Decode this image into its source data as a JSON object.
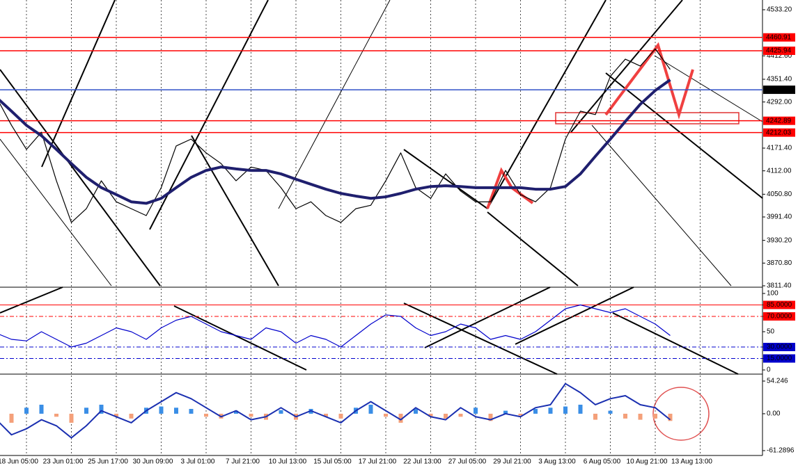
{
  "chart_data": [
    {
      "type": "line",
      "categories": [
        null,
        null,
        "18 Jun 05:00",
        null,
        null,
        "23 Jun 01:00",
        null,
        null,
        "25 Jun 17:00",
        null,
        null,
        "30 Jun 09:00",
        null,
        null,
        "3 Jul 01:00",
        null,
        null,
        "7 Jul 21:00",
        null,
        null,
        "10 Jul 13:00",
        null,
        null,
        "15 Jul 05:00",
        null,
        null,
        "17 Jul 21:00",
        null,
        null,
        "22 Jul 13:00",
        null,
        null,
        "27 Jul 05:00",
        null,
        null,
        "29 Jul 21:00",
        null,
        null,
        "3 Aug 13:00",
        null,
        null,
        "6 Aug 05:00",
        null,
        null,
        "10 Aug 21:00",
        null,
        null,
        "13 Aug 13:00",
        null,
        null
      ],
      "series": [
        {
          "color": "#000000",
          "values": [
            4304,
            4231,
            4168,
            4213,
            4086,
            3977,
            4013,
            4086,
            4031,
            4013,
            3995,
            4068,
            4177,
            4195,
            4159,
            4131,
            4086,
            4122,
            4113,
            4068,
            4013,
            4031,
            3995,
            3977,
            4013,
            4022,
            4086,
            4159,
            4068,
            4040,
            4104,
            4059,
            4031,
            4031,
            4113,
            4050,
            4031,
            4068,
            4195,
            4268,
            4259,
            4359,
            4404,
            4386,
            4431,
            4377,
            null,
            null,
            null,
            null
          ]
        },
        {
          "color": "#1f1f6e",
          "values": [
            4304,
            4268,
            4231,
            4204,
            4168,
            4131,
            4095,
            4068,
            4050,
            4031,
            4027,
            4040,
            4068,
            4095,
            4113,
            4122,
            4117,
            4113,
            4113,
            4104,
            4090,
            4077,
            4064,
            4053,
            4046,
            4040,
            4044,
            4053,
            4064,
            4071,
            4073,
            4071,
            4068,
            4068,
            4068,
            4068,
            4064,
            4064,
            4071,
            4104,
            4150,
            4195,
            4241,
            4286,
            4322,
            4350,
            null,
            null,
            null,
            null
          ]
        }
      ],
      "ylim": [
        3811.4,
        4533.2
      ],
      "yticks": [
        {
          "value": 4533.2,
          "label": "4533.20"
        },
        {
          "value": 4412.6,
          "label": "4412.60"
        },
        {
          "value": 4351.4,
          "label": "4351.40"
        },
        {
          "value": 4292,
          "label": "4292.00"
        },
        {
          "value": 4171.4,
          "label": "4171.40"
        },
        {
          "value": 4112,
          "label": "4112.00"
        },
        {
          "value": 4050.8,
          "label": "4050.80"
        },
        {
          "value": 3991.4,
          "label": "3991.40"
        },
        {
          "value": 3930.2,
          "label": "3930.20"
        },
        {
          "value": 3870.8,
          "label": "3870.80"
        },
        {
          "value": 3811.4,
          "label": "3811.40"
        }
      ],
      "levels": [
        {
          "value": 4460.91,
          "color": "#ff0000"
        },
        {
          "value": 4425.94,
          "color": "#ff0000"
        },
        {
          "value": 4323.99,
          "color": "#3050c8"
        },
        {
          "value": 4242.89,
          "color": "#ff0000"
        },
        {
          "value": 4212.03,
          "color": "#ff0000"
        }
      ]
    },
    {
      "type": "line",
      "series": [
        {
          "color": "#0000cc",
          "values": [
            48,
            40,
            38,
            50,
            40,
            30,
            35,
            45,
            55,
            50,
            40,
            55,
            65,
            70,
            60,
            50,
            45,
            40,
            55,
            50,
            35,
            45,
            40,
            30,
            45,
            60,
            72,
            70,
            55,
            45,
            50,
            60,
            55,
            40,
            45,
            40,
            50,
            65,
            80,
            85,
            80,
            75,
            80,
            70,
            60,
            45,
            null,
            null,
            null,
            null
          ]
        }
      ],
      "ylim": [
        0,
        100
      ],
      "yticks": [
        100,
        {
          "value": 85,
          "label": "85.0000"
        },
        {
          "value": 70,
          "label": "70.0000"
        },
        50,
        {
          "value": 30,
          "label": "30.0000"
        },
        {
          "value": 15,
          "label": "15.0000"
        },
        0
      ],
      "levels": [
        {
          "value": 85,
          "color": "#ff0000"
        },
        {
          "value": 70,
          "color": "#ff0000"
        },
        {
          "value": 30,
          "color": "#0000cc"
        },
        {
          "value": 15,
          "color": "#0000cc"
        }
      ]
    },
    {
      "type": "bar",
      "series": [
        {
          "colors": {
            "positive": "#3a8ee6",
            "negative": "#f4a07a"
          },
          "values": [
            -10,
            -15,
            10,
            15,
            -5,
            -15,
            10,
            15,
            -5,
            -8,
            10,
            12,
            10,
            8,
            -5,
            -8,
            5,
            -5,
            -10,
            6,
            -10,
            8,
            -5,
            -8,
            10,
            15,
            -5,
            -15,
            8,
            -5,
            -8,
            -5,
            10,
            -12,
            5,
            -3,
            8,
            10,
            12,
            15,
            -10,
            5,
            -8,
            -10,
            -8,
            -12,
            null,
            null,
            null,
            null
          ]
        },
        {
          "color": "#1a2fb0",
          "values": [
            -10,
            -35,
            -25,
            -10,
            -20,
            -40,
            -20,
            5,
            -5,
            -15,
            5,
            20,
            35,
            25,
            10,
            -5,
            5,
            -10,
            -5,
            10,
            -5,
            5,
            -5,
            -15,
            5,
            20,
            5,
            -10,
            10,
            -5,
            -10,
            10,
            -5,
            -10,
            0,
            -5,
            10,
            15,
            50,
            35,
            15,
            25,
            30,
            15,
            10,
            -10,
            null,
            null,
            null,
            null
          ]
        }
      ],
      "ylim": [
        -61.2896,
        54.246
      ],
      "yticks": [
        54.246,
        {
          "value": 0,
          "label": "0.00"
        },
        -61.2896
      ]
    }
  ]
}
